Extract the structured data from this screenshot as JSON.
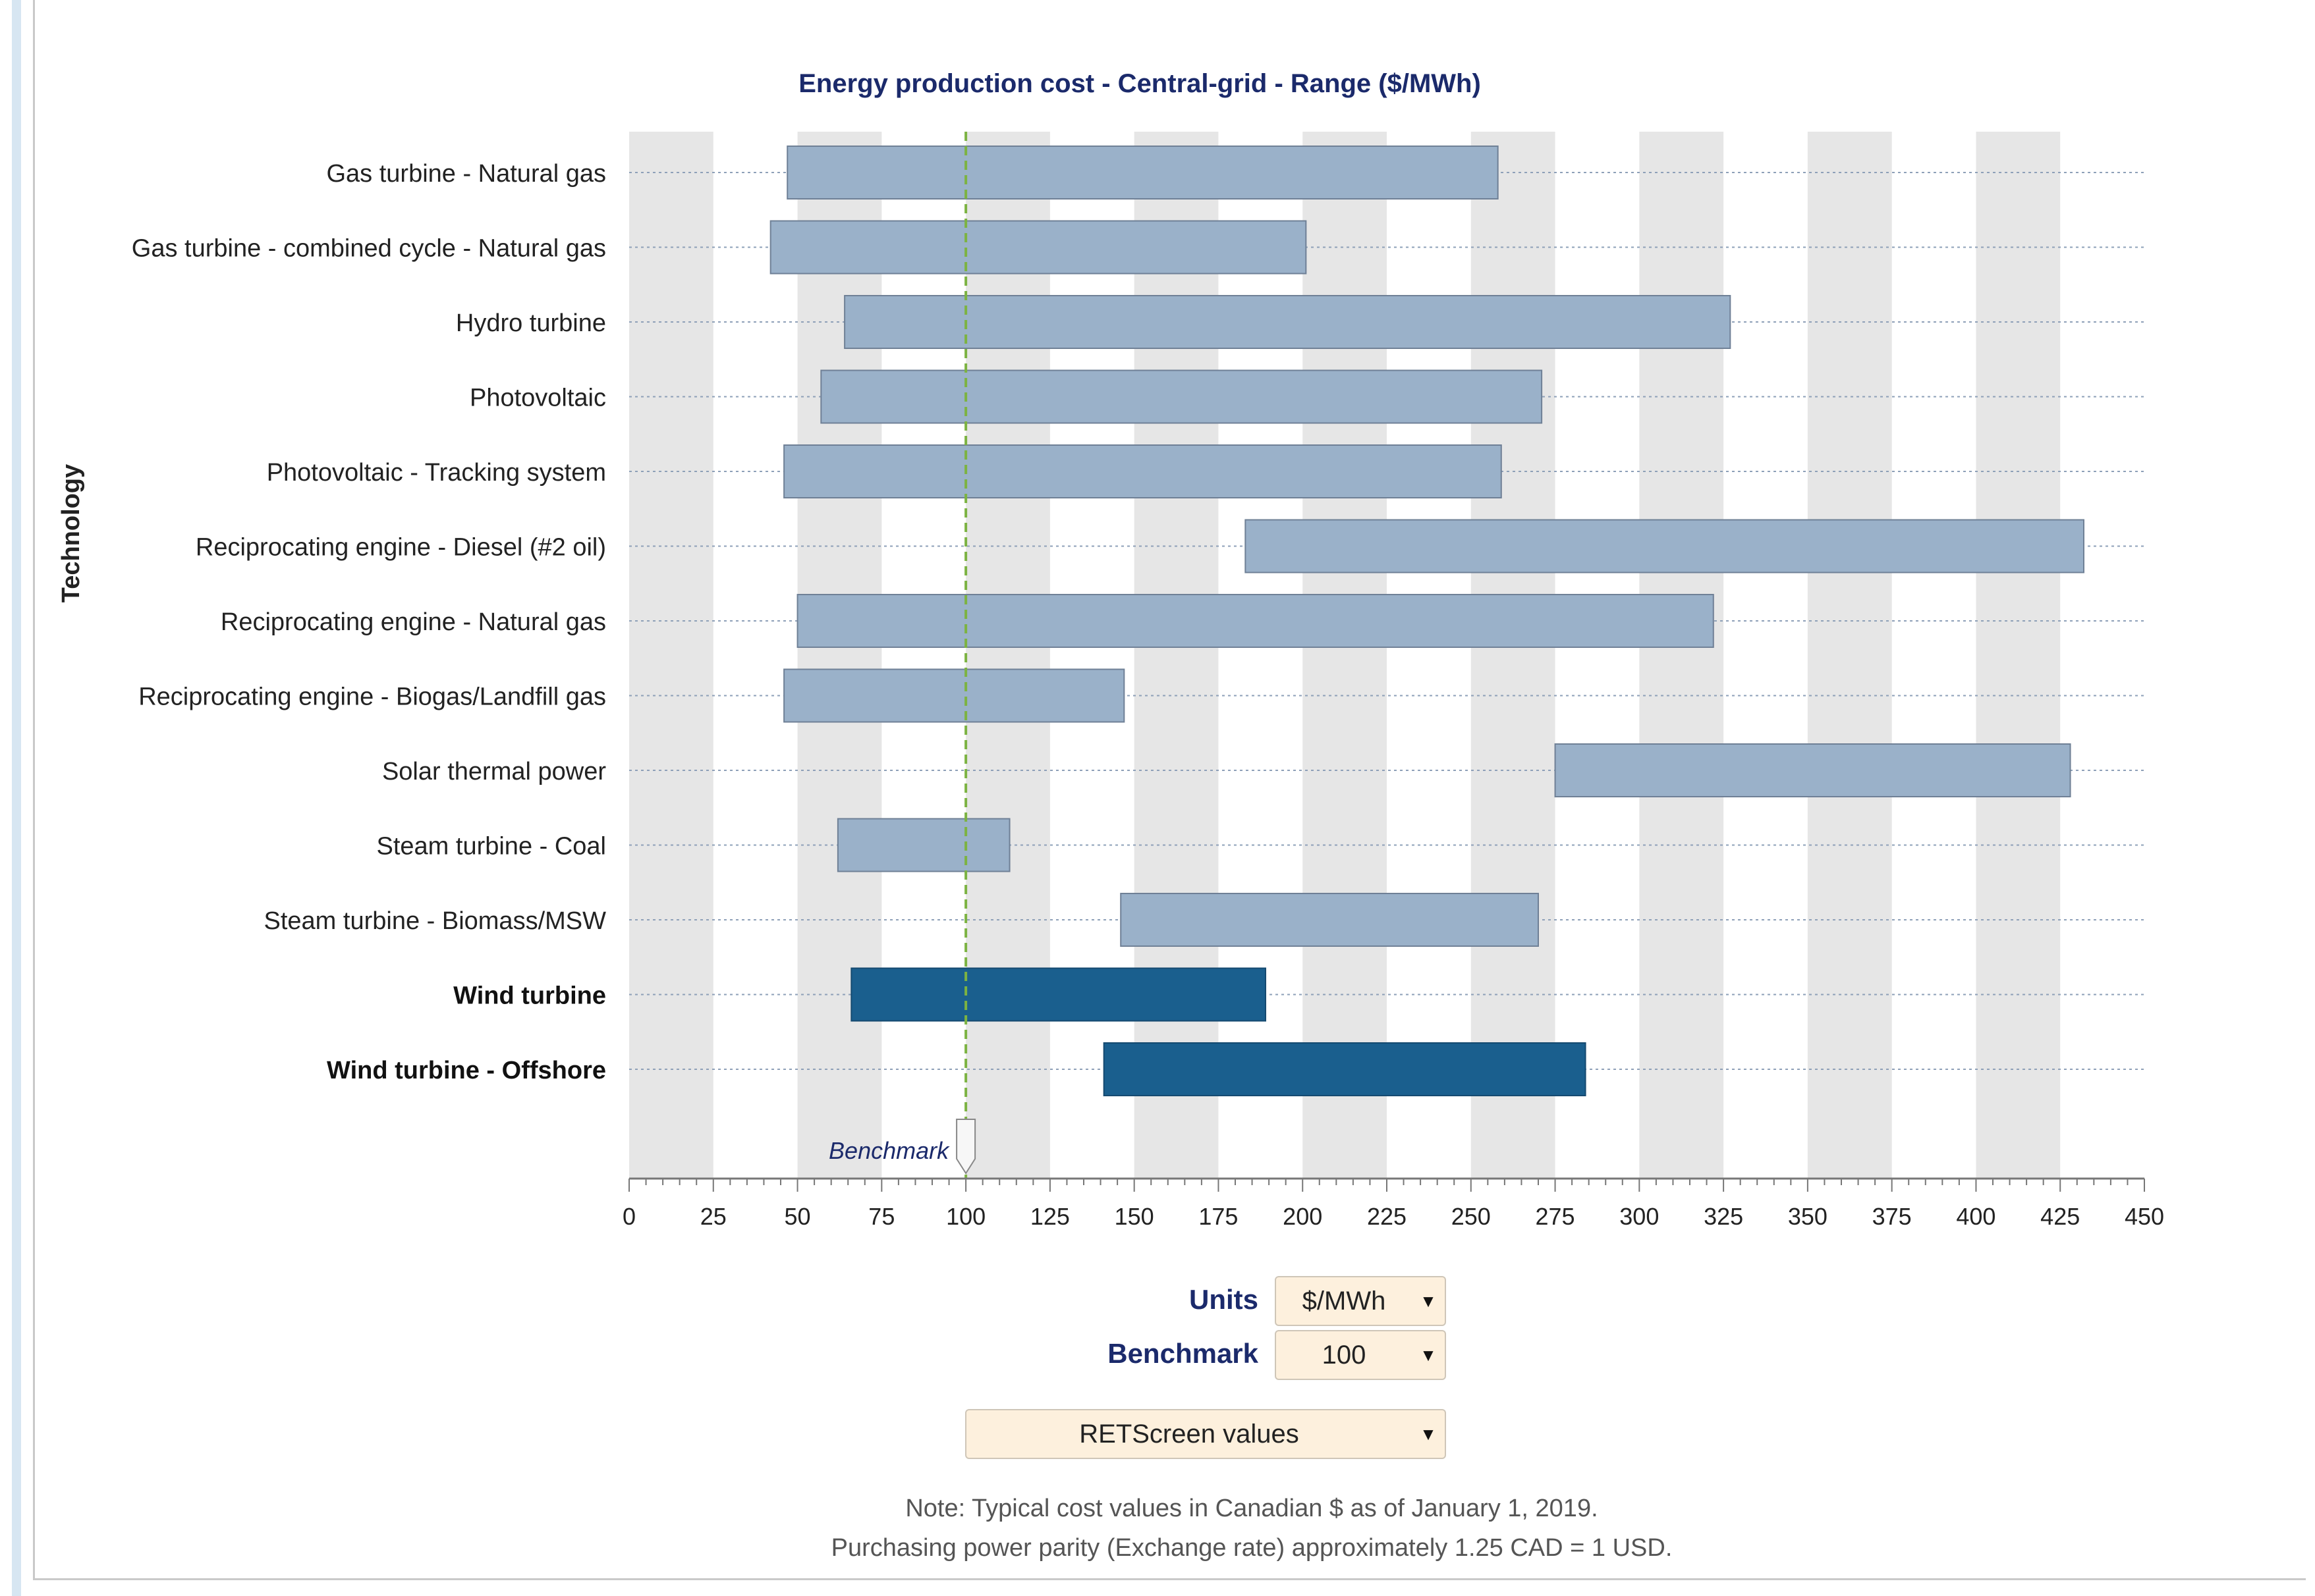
{
  "chart_data": {
    "type": "bar",
    "orientation": "horizontal-range",
    "title": "Energy production cost - Central-grid - Range ($/MWh)",
    "ylabel": "Technology",
    "xlabel": "",
    "xlim": [
      0,
      450
    ],
    "xticks": [
      "0",
      "25",
      "50",
      "75",
      "100",
      "125",
      "150",
      "175",
      "200",
      "225",
      "250",
      "275",
      "300",
      "325",
      "350",
      "375",
      "400",
      "425",
      "450"
    ],
    "benchmark": {
      "label": "Benchmark",
      "value": 100
    },
    "categories": [
      "Gas turbine - Natural gas",
      "Gas turbine - combined cycle - Natural gas",
      "Hydro turbine",
      "Photovoltaic",
      "Photovoltaic - Tracking system",
      "Reciprocating engine - Diesel (#2 oil)",
      "Reciprocating engine - Natural gas",
      "Reciprocating engine - Biogas/Landfill gas",
      "Solar thermal power",
      "Steam turbine - Coal",
      "Steam turbine - Biomass/MSW",
      "Wind turbine",
      "Wind turbine - Offshore"
    ],
    "series": [
      {
        "name": "Cost range",
        "ranges": [
          [
            47,
            258
          ],
          [
            42,
            201
          ],
          [
            64,
            327
          ],
          [
            57,
            271
          ],
          [
            46,
            259
          ],
          [
            183,
            432
          ],
          [
            50,
            322
          ],
          [
            46,
            147
          ],
          [
            275,
            428
          ],
          [
            62,
            113
          ],
          [
            146,
            270
          ],
          [
            66,
            189
          ],
          [
            141,
            284
          ]
        ],
        "highlight": [
          false,
          false,
          false,
          false,
          false,
          false,
          false,
          false,
          false,
          false,
          false,
          true,
          true
        ]
      }
    ],
    "colors": {
      "bar": "#9ab1c9",
      "bar_border": "#6f8096",
      "highlight_bar": "#1a5f8e",
      "highlight_border": "#154a70",
      "benchmark_line": "#7cb342",
      "title": "#1b2a6b",
      "band": "#e6e6e6"
    }
  },
  "controls": {
    "units_label": "Units",
    "units_value": "$/MWh",
    "benchmark_label": "Benchmark",
    "benchmark_value": "100",
    "source_value": "RETScreen values"
  },
  "notes": {
    "line1": "Note: Typical cost values in Canadian $ as of January 1, 2019.",
    "line2": "Purchasing power parity (Exchange rate) approximately 1.25 CAD = 1 USD."
  }
}
